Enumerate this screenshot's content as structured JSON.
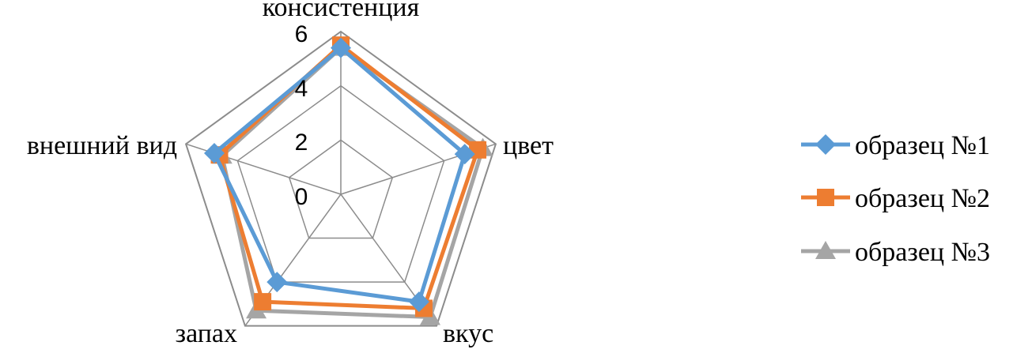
{
  "chart_data": {
    "type": "radar",
    "categories": [
      "консистенция",
      "цвет",
      "вкус",
      "запах",
      "внешний вид"
    ],
    "rlim": [
      0,
      6
    ],
    "ticks": [
      "0",
      "2",
      "4",
      "6"
    ],
    "grid": true,
    "legend_position": "right",
    "series": [
      {
        "name": "образец №1",
        "values": [
          5.4,
          4.8,
          4.9,
          4.0,
          4.9
        ],
        "color": "#5B9BD5",
        "marker": "diamond"
      },
      {
        "name": "образец №2",
        "values": [
          5.5,
          5.3,
          5.2,
          4.9,
          4.7
        ],
        "color": "#ED7D31",
        "marker": "square"
      },
      {
        "name": "образец №3",
        "values": [
          5.4,
          5.5,
          5.6,
          5.3,
          4.6
        ],
        "color": "#A5A5A5",
        "marker": "triangle"
      }
    ]
  }
}
